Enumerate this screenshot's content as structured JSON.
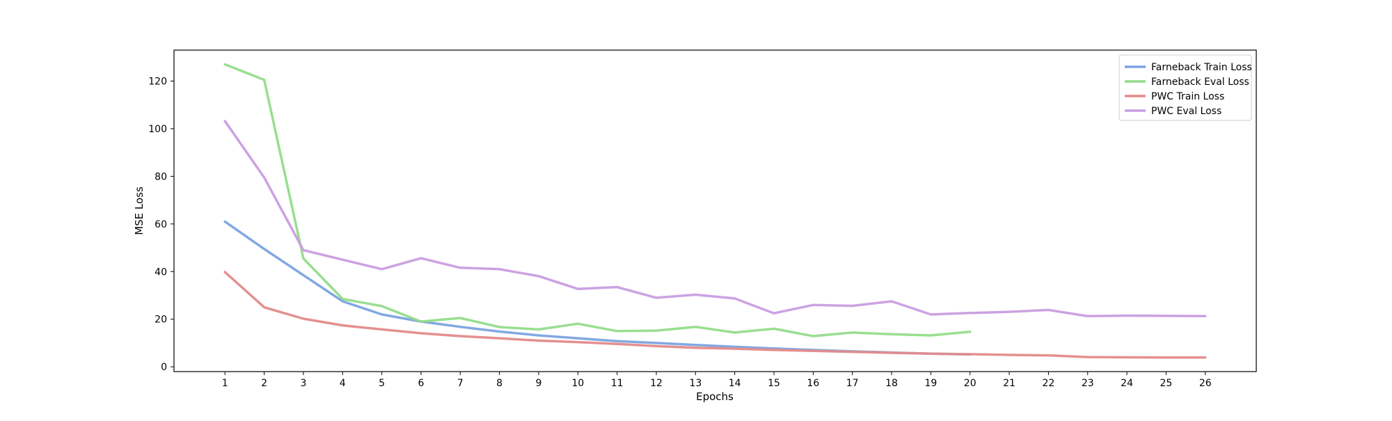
{
  "chart_data": {
    "type": "line",
    "xlabel": "Epochs",
    "ylabel": "MSE Loss",
    "xlim": [
      -0.3,
      27.3
    ],
    "ylim": [
      -2,
      133
    ],
    "xticks": [
      1,
      2,
      3,
      4,
      5,
      6,
      7,
      8,
      9,
      10,
      11,
      12,
      13,
      14,
      15,
      16,
      17,
      18,
      19,
      20,
      21,
      22,
      23,
      24,
      25,
      26
    ],
    "yticks": [
      0,
      20,
      40,
      60,
      80,
      100,
      120
    ],
    "grid": false,
    "legend_position": "top-right",
    "series": [
      {
        "name": "Farneback Train Loss",
        "color": "#7ba3e0",
        "x": [
          1,
          2,
          3,
          4,
          5,
          6,
          7,
          8,
          9,
          10,
          11,
          12,
          13,
          14,
          15,
          16,
          17,
          18,
          19,
          20
        ],
        "y": [
          61,
          49.5,
          38.5,
          27.5,
          22,
          19,
          16.8,
          14.8,
          13.2,
          12,
          10.8,
          10,
          9.2,
          8.4,
          7.7,
          7.1,
          6.5,
          6,
          5.5,
          5.2
        ]
      },
      {
        "name": "Farneback Eval Loss",
        "color": "#93dc8a",
        "x": [
          1,
          2,
          3,
          4,
          5,
          6,
          7,
          8,
          9,
          10,
          11,
          12,
          13,
          14,
          15,
          16,
          17,
          18,
          19,
          20
        ],
        "y": [
          127,
          120.5,
          45.5,
          28.5,
          25.5,
          19,
          20.5,
          16.7,
          15.7,
          18.1,
          15,
          15.2,
          16.8,
          14.4,
          16,
          12.9,
          14.4,
          13.7,
          13.2,
          14.7
        ]
      },
      {
        "name": "PWC Train Loss",
        "color": "#e38a8a",
        "x": [
          1,
          2,
          3,
          4,
          5,
          6,
          7,
          8,
          9,
          10,
          11,
          12,
          13,
          14,
          15,
          16,
          17,
          18,
          19,
          20,
          21,
          22,
          23,
          24,
          25,
          26
        ],
        "y": [
          39.8,
          25,
          20.2,
          17.4,
          15.7,
          14.1,
          12.9,
          12,
          11,
          10.4,
          9.6,
          8.7,
          8,
          7.6,
          7.1,
          6.7,
          6.3,
          5.9,
          5.5,
          5.3,
          5,
          4.8,
          4.1,
          4,
          3.9,
          3.9
        ]
      },
      {
        "name": "PWC Eval Loss",
        "color": "#c99de0",
        "x": [
          1,
          2,
          3,
          4,
          5,
          6,
          7,
          8,
          9,
          10,
          11,
          12,
          13,
          14,
          15,
          16,
          17,
          18,
          19,
          20,
          21,
          22,
          23,
          24,
          25,
          26
        ],
        "y": [
          103.2,
          79.5,
          49,
          45,
          41,
          45.6,
          41.6,
          41,
          38.1,
          32.7,
          33.5,
          29,
          30.3,
          28.7,
          22.5,
          26,
          25.6,
          27.5,
          22,
          22.6,
          23.1,
          23.9,
          21.3,
          21.5,
          21.4,
          21.3
        ]
      }
    ]
  }
}
